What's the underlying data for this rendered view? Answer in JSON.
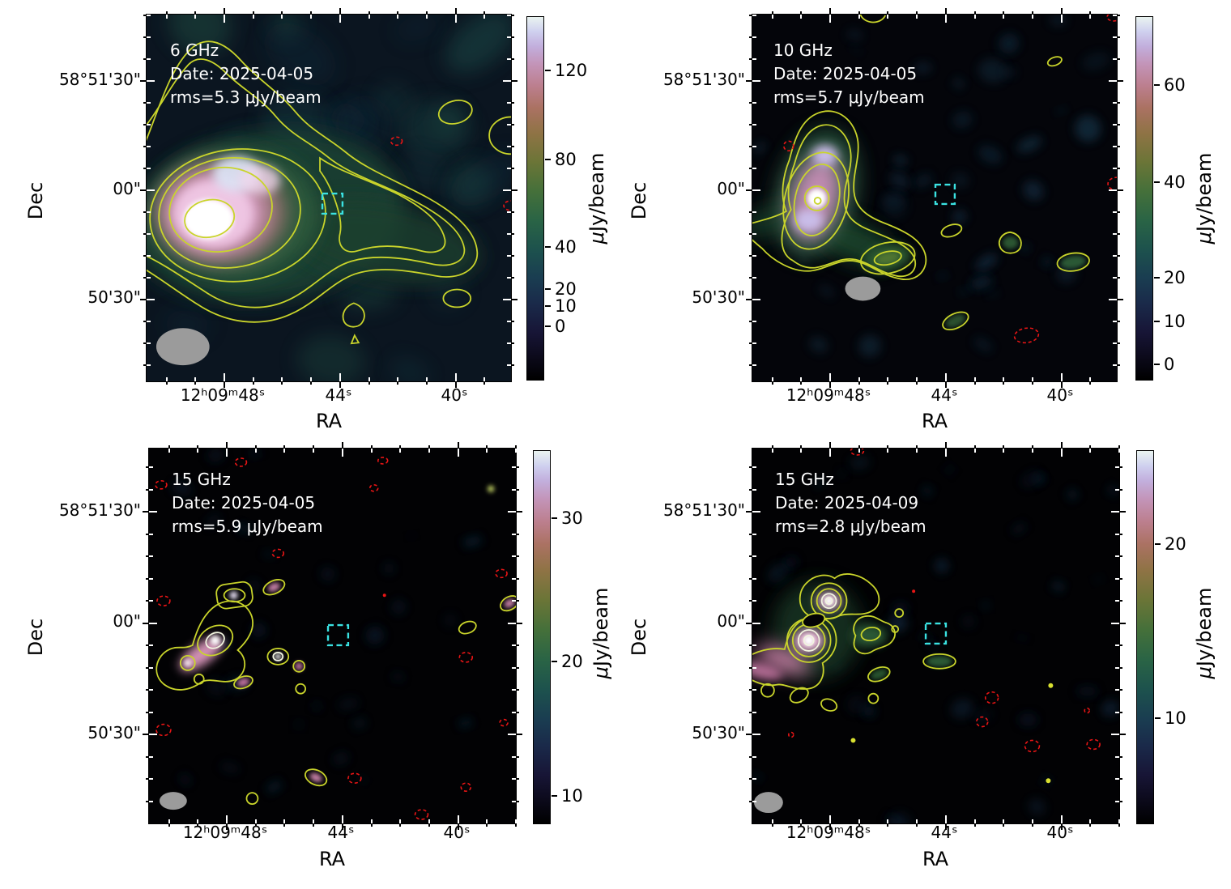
{
  "figure": {
    "background": "#ffffff",
    "description": "2x2 grid of VLA radio continuum maps of the same field at different frequencies and epochs"
  },
  "colors": {
    "positive_contour": "#c9d42b",
    "negative_contour": "#e81515",
    "target_box": "#3ae2e2",
    "beam": "#9b9b9b",
    "annotation_text": "#ffffff",
    "axis_text": "#000000"
  },
  "chart_data": [
    {
      "type": "heatmap",
      "panel": "top-left",
      "frequency": "6 GHz",
      "annotation": [
        "6 GHz",
        "Date: 2025-04-05",
        "rms=5.3 μJy/beam"
      ],
      "xlabel": "RA",
      "ylabel": "Dec",
      "x_ticks": [
        "12ʰ09ᵐ48ˢ",
        "44ˢ",
        "40ˢ"
      ],
      "y_ticks": [
        "58°51'30\"",
        "00\"",
        "50'30\""
      ],
      "colorbar": {
        "label_mu": "μ",
        "label_rest": "Jy/beam",
        "ticks": [
          "120",
          "80",
          "40",
          "20",
          "10",
          "0"
        ]
      },
      "features": [
        "bright extended radio source on east (left) side with tail extending west",
        "nested solid yellow positive contours",
        "dashed red negative contours",
        "dashed cyan square marks target position",
        "filled gray beam ellipse at lower left"
      ]
    },
    {
      "type": "heatmap",
      "panel": "top-right",
      "frequency": "10 GHz",
      "annotation": [
        "10 GHz",
        "Date: 2025-04-05",
        "rms=5.7 μJy/beam"
      ],
      "xlabel": "RA",
      "ylabel": "Dec",
      "x_ticks": [
        "12ʰ09ᵐ48ˢ",
        "44ˢ",
        "40ˢ"
      ],
      "y_ticks": [
        "58°51'30\"",
        "00\"",
        "50'30\""
      ],
      "colorbar": {
        "label_mu": "μ",
        "label_rest": "Jy/beam",
        "ticks": [
          "60",
          "40",
          "20",
          "10",
          "0"
        ]
      },
      "features": [
        "compact bright source with pink halo and green envelope on left side",
        "small isolated yellow contour islands",
        "dashed red negative contours",
        "dashed cyan square marks target position",
        "filled gray beam ellipse left of center"
      ]
    },
    {
      "type": "heatmap",
      "panel": "bottom-left",
      "frequency": "15 GHz",
      "annotation": [
        "15 GHz",
        "Date: 2025-04-05",
        "rms=5.9 μJy/beam"
      ],
      "xlabel": "RA",
      "ylabel": "Dec",
      "x_ticks": [
        "12ʰ09ᵐ48ˢ",
        "44ˢ",
        "40ˢ"
      ],
      "y_ticks": [
        "58°51'30\"",
        "00\"",
        "50'30\""
      ],
      "colorbar": {
        "label_mu": "μ",
        "label_rest": "Jy/beam",
        "ticks": [
          "30",
          "20",
          "10"
        ]
      },
      "features": [
        "source broken into cluster of compact yellow-contoured knots on left side",
        "scattered faint noise blobs and dashed red negative contours",
        "dashed cyan square marks target position",
        "small filled gray beam ellipse at lower left"
      ]
    },
    {
      "type": "heatmap",
      "panel": "bottom-right",
      "frequency": "15 GHz",
      "annotation": [
        "15 GHz",
        "Date: 2025-04-09",
        "rms=2.8 μJy/beam"
      ],
      "xlabel": "RA",
      "ylabel": "Dec",
      "x_ticks": [
        "12ʰ09ᵐ48ˢ",
        "44ˢ",
        "40ˢ"
      ],
      "y_ticks": [
        "58°51'30\"",
        "00\"",
        "50'30\""
      ],
      "colorbar": {
        "label_mu": "μ",
        "label_rest": "Jy/beam",
        "ticks": [
          "20",
          "10"
        ]
      },
      "features": [
        "two bright compact sources with concentric contour rings and pink tail to southwest",
        "scattered faint noise blobs and dashed red negative contours",
        "dashed cyan square marks target position",
        "small filled gray beam ellipse at lower left"
      ]
    }
  ]
}
